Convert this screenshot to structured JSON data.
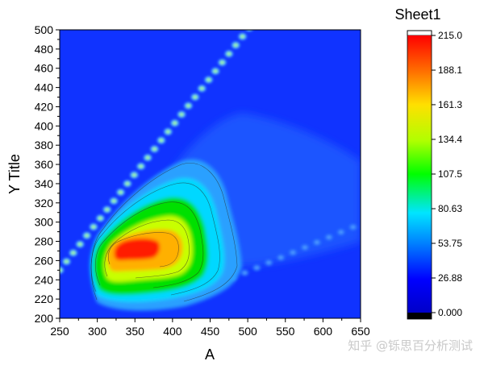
{
  "chart_data": {
    "type": "heatmap",
    "title": "Sheet1",
    "xlabel": "A",
    "ylabel": "Y Title",
    "xlim": [
      250,
      650
    ],
    "ylim": [
      200,
      500
    ],
    "x_ticks": [
      250,
      300,
      350,
      400,
      450,
      500,
      550,
      600,
      650
    ],
    "y_ticks": [
      200,
      220,
      240,
      260,
      280,
      300,
      320,
      340,
      360,
      380,
      400,
      420,
      440,
      460,
      480,
      500
    ],
    "colorbar": {
      "title": "Sheet1",
      "min": 0.0,
      "max": 215.0,
      "tick_labels": [
        "0.000",
        "26.88",
        "53.75",
        "80.63",
        "107.5",
        "134.4",
        "161.3",
        "188.1",
        "215.0"
      ],
      "tick_values": [
        0,
        26.88,
        53.75,
        80.63,
        107.5,
        134.4,
        161.3,
        188.1,
        215.0
      ]
    },
    "peak": {
      "x": 355,
      "y": 272,
      "value": 215
    },
    "colors": {
      "low": "#0000ff",
      "background": "#1033ff",
      "mid": "#00ff00",
      "high": "#ff0000"
    }
  },
  "watermark": "知乎 @铄思百分析测试"
}
